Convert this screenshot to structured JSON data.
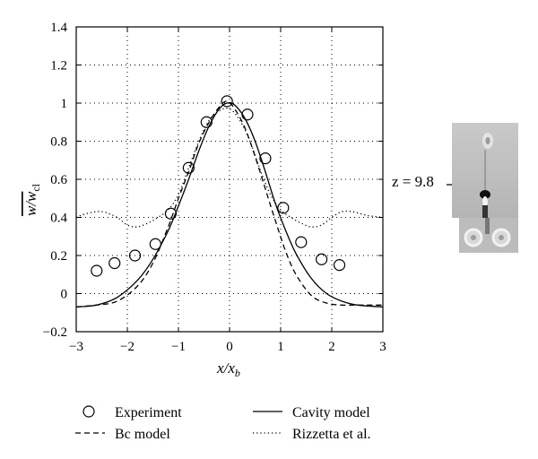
{
  "chart_data": {
    "type": "line",
    "xlabel": "x/x",
    "xlabel_sub": "b",
    "ylabel": "w/w",
    "ylabel_sub": "cl",
    "xlim": [
      -3,
      3
    ],
    "ylim": [
      -0.2,
      1.4
    ],
    "xticks": [
      -3,
      -2,
      -1,
      0,
      1,
      2,
      3
    ],
    "xtick_labels": [
      "−3",
      "−2",
      "−1",
      "0",
      "1",
      "2",
      "3"
    ],
    "yticks": [
      -0.2,
      0,
      0.2,
      0.4,
      0.6,
      0.8,
      1,
      1.2,
      1.4
    ],
    "ytick_labels": [
      "−0.2",
      "0",
      "0.2",
      "0.4",
      "0.6",
      "0.8",
      "1",
      "1.2",
      "1.4"
    ],
    "grid": true,
    "legend_placement": "below",
    "series": [
      {
        "name": "Experiment",
        "style": "markers",
        "x": [
          -2.6,
          -2.25,
          -1.85,
          -1.45,
          -1.15,
          -0.8,
          -0.45,
          -0.05,
          0.35,
          0.7,
          1.05,
          1.4,
          1.8,
          2.15
        ],
        "y": [
          0.12,
          0.16,
          0.2,
          0.26,
          0.42,
          0.66,
          0.9,
          1.01,
          0.94,
          0.71,
          0.45,
          0.27,
          0.18,
          0.15
        ]
      },
      {
        "name": "Cavity model",
        "style": "solid",
        "x": [
          -3,
          -2.6,
          -2.2,
          -1.8,
          -1.5,
          -1.2,
          -1.0,
          -0.8,
          -0.6,
          -0.4,
          -0.2,
          -0.05,
          0.1,
          0.3,
          0.5,
          0.7,
          0.9,
          1.1,
          1.3,
          1.6,
          1.9,
          2.2,
          2.5,
          3
        ],
        "y": [
          -0.07,
          -0.06,
          -0.02,
          0.07,
          0.18,
          0.33,
          0.46,
          0.6,
          0.75,
          0.88,
          0.97,
          1.0,
          0.99,
          0.92,
          0.8,
          0.64,
          0.47,
          0.33,
          0.21,
          0.08,
          0.0,
          -0.04,
          -0.06,
          -0.07
        ]
      },
      {
        "name": "Bc model",
        "style": "dashed",
        "x": [
          -3,
          -2.6,
          -2.2,
          -1.8,
          -1.5,
          -1.2,
          -1.0,
          -0.8,
          -0.6,
          -0.4,
          -0.2,
          -0.05,
          0.1,
          0.3,
          0.5,
          0.7,
          0.9,
          1.1,
          1.3,
          1.6,
          1.9,
          2.2,
          2.5,
          3
        ],
        "y": [
          -0.07,
          -0.06,
          -0.04,
          0.04,
          0.16,
          0.35,
          0.5,
          0.64,
          0.79,
          0.9,
          0.98,
          1.01,
          0.97,
          0.87,
          0.72,
          0.55,
          0.38,
          0.22,
          0.1,
          -0.01,
          -0.05,
          -0.06,
          -0.06,
          -0.06
        ]
      },
      {
        "name": "Rizzetta et al.",
        "style": "dotted",
        "x": [
          -3,
          -2.8,
          -2.5,
          -2.2,
          -2.0,
          -1.8,
          -1.6,
          -1.4,
          -1.2,
          -1.0,
          -0.8,
          -0.6,
          -0.4,
          -0.2,
          0,
          0.2,
          0.4,
          0.6,
          0.8,
          1.0,
          1.2,
          1.4,
          1.6,
          1.8,
          2.0,
          2.2,
          2.4,
          2.7,
          3
        ],
        "y": [
          0.4,
          0.42,
          0.43,
          0.4,
          0.36,
          0.35,
          0.37,
          0.4,
          0.44,
          0.52,
          0.66,
          0.8,
          0.91,
          0.96,
          0.97,
          0.91,
          0.8,
          0.65,
          0.52,
          0.44,
          0.4,
          0.37,
          0.35,
          0.36,
          0.4,
          0.43,
          0.43,
          0.41,
          0.4
        ]
      }
    ],
    "inset_annotation": "z = 9.8"
  }
}
